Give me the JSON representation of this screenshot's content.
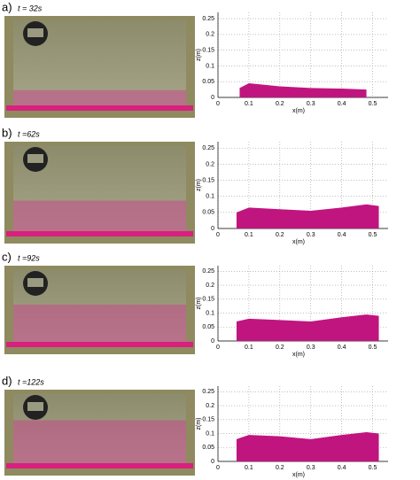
{
  "chart_data": [
    {
      "type": "area",
      "panel_label": "a)",
      "title": "t = 32s",
      "x_label": "x(m)",
      "y_label": "z(m)",
      "xlim": [
        0,
        0.55
      ],
      "ylim": [
        0,
        0.27
      ],
      "xticks": [
        0,
        0.1,
        0.2,
        0.3,
        0.4,
        0.5
      ],
      "yticks": [
        0,
        0.05,
        0.1,
        0.15,
        0.2,
        0.25
      ],
      "grid": true,
      "color": "#c0157f",
      "x": [
        0.07,
        0.1,
        0.15,
        0.2,
        0.3,
        0.4,
        0.48
      ],
      "values": [
        0.03,
        0.045,
        0.04,
        0.035,
        0.03,
        0.028,
        0.025
      ]
    },
    {
      "type": "area",
      "panel_label": "b)",
      "title": "t =62s",
      "x_label": "x(m)",
      "y_label": "z(m)",
      "xlim": [
        0,
        0.55
      ],
      "ylim": [
        0,
        0.27
      ],
      "xticks": [
        0,
        0.1,
        0.2,
        0.3,
        0.4,
        0.5
      ],
      "yticks": [
        0,
        0.05,
        0.1,
        0.15,
        0.2,
        0.25
      ],
      "grid": true,
      "color": "#c0157f",
      "x": [
        0.06,
        0.1,
        0.2,
        0.3,
        0.4,
        0.48,
        0.52
      ],
      "values": [
        0.05,
        0.065,
        0.06,
        0.055,
        0.065,
        0.075,
        0.07
      ]
    },
    {
      "type": "area",
      "panel_label": "c)",
      "title": "t =92s",
      "x_label": "x(m)",
      "y_label": "z(m)",
      "xlim": [
        0,
        0.55
      ],
      "ylim": [
        0,
        0.27
      ],
      "xticks": [
        0,
        0.1,
        0.2,
        0.3,
        0.4,
        0.5
      ],
      "yticks": [
        0,
        0.05,
        0.1,
        0.15,
        0.2,
        0.25
      ],
      "grid": true,
      "color": "#c0157f",
      "x": [
        0.06,
        0.1,
        0.2,
        0.3,
        0.4,
        0.48,
        0.52
      ],
      "values": [
        0.07,
        0.08,
        0.075,
        0.07,
        0.085,
        0.095,
        0.09
      ]
    },
    {
      "type": "area",
      "panel_label": "d)",
      "title": "t =122s",
      "x_label": "x(m)",
      "y_label": "z(m)",
      "xlim": [
        0,
        0.55
      ],
      "ylim": [
        0,
        0.27
      ],
      "xticks": [
        0,
        0.1,
        0.2,
        0.3,
        0.4,
        0.5
      ],
      "yticks": [
        0,
        0.05,
        0.1,
        0.15,
        0.2,
        0.25
      ],
      "grid": true,
      "color": "#c0157f",
      "x": [
        0.06,
        0.1,
        0.2,
        0.3,
        0.4,
        0.48,
        0.52
      ],
      "values": [
        0.08,
        0.095,
        0.09,
        0.08,
        0.095,
        0.105,
        0.1
      ]
    }
  ]
}
